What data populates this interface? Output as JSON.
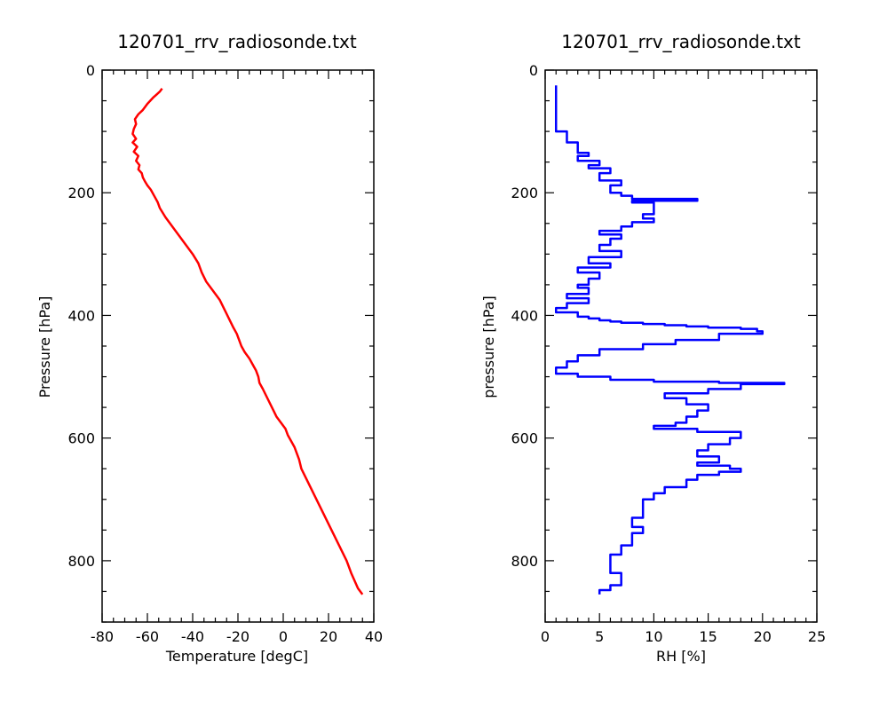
{
  "chart_data": [
    {
      "type": "line",
      "title": "120701_rrv_radiosonde.txt",
      "xlabel": "Temperature [degC]",
      "ylabel": "Pressure [hPa]",
      "xlim": [
        -80,
        40
      ],
      "ylim": [
        900,
        0
      ],
      "y_inverted": true,
      "x_ticks": [
        -80,
        -60,
        -40,
        -20,
        0,
        20,
        40
      ],
      "y_ticks": [
        0,
        200,
        400,
        600,
        800
      ],
      "x_minor_step": 5,
      "y_minor_step": 50,
      "grid": false,
      "series": [
        {
          "color": "#ff0000",
          "x": [
            -53.5,
            -54.5,
            -56,
            -57.5,
            -60,
            -62,
            -64,
            -65.5,
            -65,
            -66,
            -66.5,
            -65,
            -66.5,
            -64.5,
            -66,
            -64,
            -65,
            -63.5,
            -64,
            -62.5,
            -62,
            -61,
            -60,
            -58.5,
            -57,
            -55.5,
            -54.5,
            -52,
            -49,
            -46,
            -43,
            -40,
            -37.5,
            -36,
            -34,
            -31,
            -28,
            -26,
            -24,
            -22,
            -20.5,
            -19.5,
            -18.5,
            -17,
            -15,
            -13.5,
            -12,
            -11,
            -10.5,
            -9,
            -7,
            -5,
            -3,
            -1,
            1,
            2,
            3.5,
            5,
            6,
            7,
            8,
            10,
            12,
            14,
            16,
            18,
            20,
            22,
            24,
            26,
            28,
            30,
            33,
            35
          ],
          "y": [
            30,
            35,
            40,
            45,
            55,
            65,
            72,
            80,
            88,
            96,
            104,
            112,
            118,
            125,
            133,
            140,
            148,
            155,
            162,
            168,
            175,
            182,
            188,
            195,
            205,
            215,
            225,
            240,
            255,
            270,
            285,
            300,
            315,
            330,
            345,
            360,
            375,
            390,
            405,
            420,
            430,
            440,
            450,
            460,
            470,
            480,
            490,
            500,
            510,
            520,
            535,
            550,
            565,
            575,
            585,
            595,
            605,
            615,
            625,
            635,
            650,
            665,
            680,
            695,
            710,
            725,
            740,
            755,
            770,
            785,
            800,
            820,
            845,
            855
          ]
        }
      ]
    },
    {
      "type": "line",
      "title": "120701_rrv_radiosonde.txt",
      "xlabel": "RH [%]",
      "ylabel": "pressure [hPa]",
      "xlim": [
        0,
        25
      ],
      "ylim": [
        900,
        0
      ],
      "y_inverted": true,
      "x_ticks": [
        0,
        5,
        10,
        15,
        20,
        25
      ],
      "y_ticks": [
        0,
        200,
        400,
        600,
        800
      ],
      "x_minor_step": 1,
      "y_minor_step": 50,
      "grid": false,
      "series": [
        {
          "color": "#0000ff",
          "x": [
            1,
            1,
            1,
            2,
            2,
            3,
            3,
            4,
            3,
            5,
            4,
            6,
            5,
            7,
            6,
            7,
            8,
            14,
            8,
            10,
            10,
            9,
            10,
            8,
            7,
            5,
            7,
            6,
            5,
            7,
            4,
            6,
            3,
            5,
            4,
            3,
            4,
            2,
            4,
            2,
            1,
            3,
            4,
            5,
            6,
            7,
            9,
            11,
            13,
            15,
            18,
            19.5,
            20,
            16,
            12,
            9,
            5,
            3,
            2,
            1,
            3,
            6,
            10,
            16,
            22,
            18,
            15,
            11,
            13,
            15,
            14,
            13,
            12,
            10,
            14,
            18,
            17,
            15,
            14,
            16,
            14,
            17,
            18,
            16,
            14,
            13,
            11,
            10,
            9,
            9,
            8,
            9,
            8,
            8,
            7,
            6,
            6,
            7,
            6,
            5
          ],
          "y": [
            25,
            60,
            100,
            108,
            118,
            128,
            135,
            140,
            148,
            155,
            160,
            168,
            180,
            188,
            200,
            205,
            210,
            213,
            216,
            225,
            235,
            242,
            248,
            255,
            262,
            268,
            275,
            285,
            295,
            305,
            315,
            322,
            330,
            340,
            350,
            355,
            365,
            372,
            380,
            388,
            395,
            402,
            405,
            408,
            410,
            412,
            414,
            416,
            418,
            420,
            422,
            426,
            430,
            440,
            447,
            455,
            465,
            475,
            485,
            495,
            500,
            505,
            508,
            510,
            512,
            520,
            527,
            535,
            545,
            555,
            565,
            575,
            580,
            585,
            590,
            600,
            610,
            620,
            630,
            640,
            645,
            650,
            655,
            660,
            668,
            680,
            690,
            700,
            710,
            730,
            745,
            755,
            765,
            775,
            790,
            805,
            820,
            840,
            848,
            855
          ]
        }
      ]
    }
  ]
}
